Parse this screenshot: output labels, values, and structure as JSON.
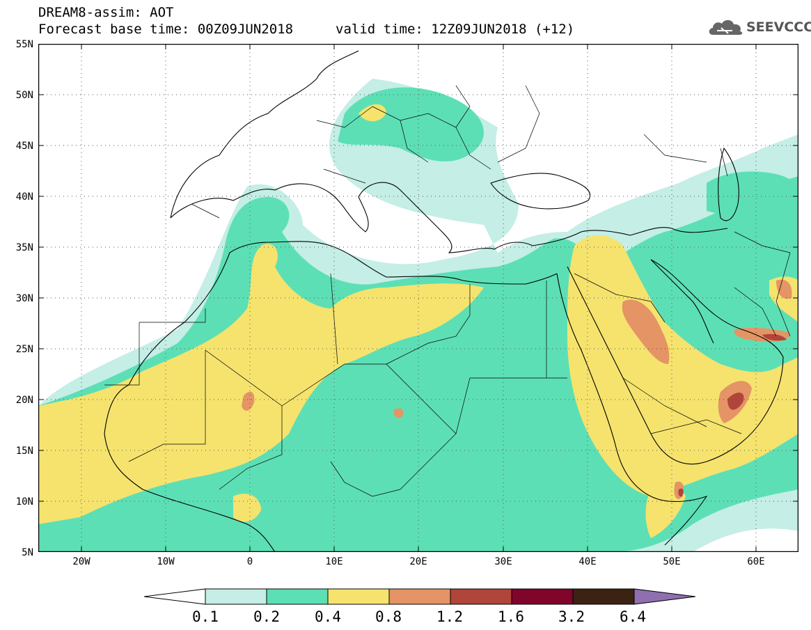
{
  "header": {
    "model_line": "DREAM8-assim: AOT",
    "base_line": "Forecast base time: 00Z09JUN2018",
    "valid_line": "valid time: 12Z09JUN2018 (+12)"
  },
  "logo": {
    "text": "SEEVCCC",
    "icon": "cloud-icon"
  },
  "axes": {
    "lat_labels": [
      "55N",
      "50N",
      "45N",
      "40N",
      "35N",
      "30N",
      "25N",
      "20N",
      "15N",
      "10N",
      "5N"
    ],
    "lon_labels": [
      "20W",
      "10W",
      "0",
      "10E",
      "20E",
      "30E",
      "40E",
      "50E",
      "60E"
    ],
    "lon_range": [
      -25,
      65
    ],
    "lat_range": [
      5,
      55
    ],
    "grid": "dotted"
  },
  "colorbar": {
    "labels": [
      "0.1",
      "0.2",
      "0.4",
      "0.8",
      "1.2",
      "1.6",
      "3.2",
      "6.4"
    ],
    "colors": [
      "#ffffff",
      "#c4eee6",
      "#5ddfb5",
      "#f5e36e",
      "#e59465",
      "#b0453a",
      "#80052a",
      "#3c2212",
      "#8f6fb0"
    ],
    "extend": "both"
  },
  "colors": {
    "aot_02": "#c4eee6",
    "aot_04": "#5ddfb5",
    "aot_08": "#f5e36e",
    "aot_12": "#e59465",
    "aot_16": "#b0453a"
  }
}
